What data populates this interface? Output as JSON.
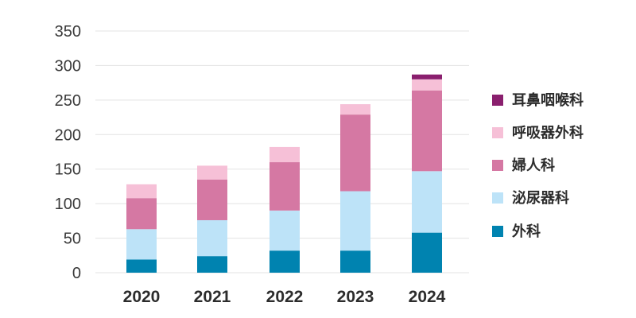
{
  "chart_data": {
    "type": "bar",
    "stacked": true,
    "categories": [
      "2020",
      "2021",
      "2022",
      "2023",
      "2024"
    ],
    "series": [
      {
        "name": "外科",
        "color": "#0083b0",
        "values": [
          19,
          24,
          32,
          32,
          58
        ]
      },
      {
        "name": "泌尿器科",
        "color": "#bde3f8",
        "values": [
          44,
          52,
          58,
          86,
          89
        ]
      },
      {
        "name": "婦人科",
        "color": "#d578a3",
        "values": [
          45,
          59,
          70,
          111,
          117
        ]
      },
      {
        "name": "呼吸器外科",
        "color": "#f6c0d7",
        "values": [
          20,
          20,
          22,
          15,
          16
        ]
      },
      {
        "name": "耳鼻咽喉科",
        "color": "#8a1f6e",
        "values": [
          0,
          0,
          0,
          0,
          7
        ]
      }
    ],
    "title": "",
    "xlabel": "",
    "ylabel": "",
    "ylim": [
      0,
      350
    ],
    "yticks": [
      "0",
      "50",
      "100",
      "150",
      "200",
      "250",
      "300",
      "350"
    ],
    "grid": true,
    "legend_position": "right",
    "legend_order": [
      "耳鼻咽喉科",
      "呼吸器外科",
      "婦人科",
      "泌尿器科",
      "外科"
    ]
  }
}
